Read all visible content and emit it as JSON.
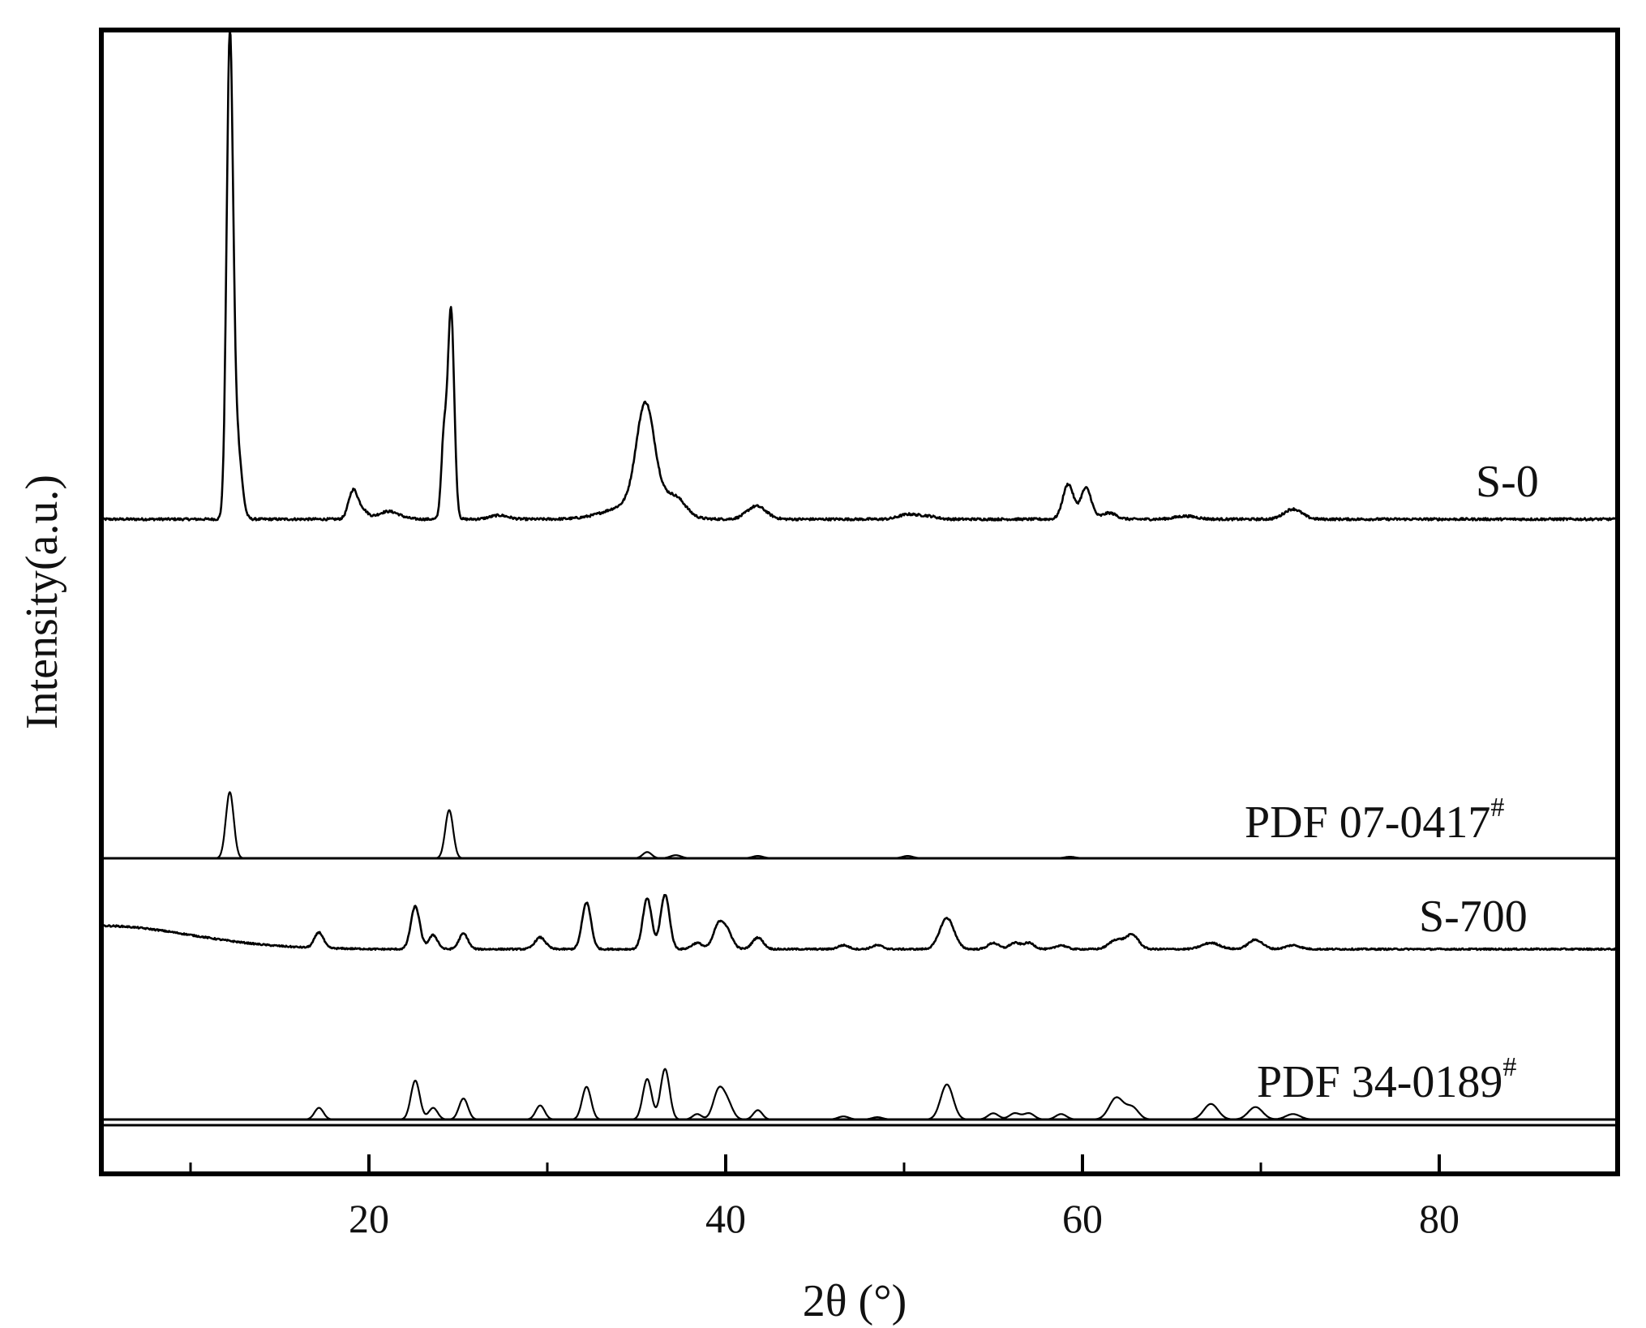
{
  "chart_data": {
    "type": "line",
    "title": "",
    "xlabel": "2θ (°)",
    "ylabel": "Intensity(a.u.)",
    "xlim": [
      5,
      90
    ],
    "xticks": [
      20,
      40,
      60,
      80
    ],
    "xticks_minor": [
      10,
      30,
      50,
      70
    ],
    "y_scale": "arbitrary units, stacked patterns with vertical offsets",
    "grid": false,
    "legend": "none (series labels printed beside each pattern)",
    "colors": {
      "line": "#000000",
      "axis": "#000000",
      "background": "#ffffff"
    },
    "series": [
      {
        "name": "S-0",
        "label_sup": "",
        "kind": "measured",
        "baseline": 0.58,
        "noise": 0.003,
        "peaks": [
          [
            12.2,
            0.6,
            0.18
          ],
          [
            12.6,
            0.1,
            0.25
          ],
          [
            19.1,
            0.035,
            0.25
          ],
          [
            19.6,
            0.012,
            0.3
          ],
          [
            21.1,
            0.01,
            0.6
          ],
          [
            24.2,
            0.1,
            0.15
          ],
          [
            24.6,
            0.27,
            0.18
          ],
          [
            27.3,
            0.005,
            0.5
          ],
          [
            35.5,
            0.13,
            0.5
          ],
          [
            35.0,
            0.02,
            1.5
          ],
          [
            36.8,
            0.015,
            0.6
          ],
          [
            37.4,
            0.012,
            0.5
          ],
          [
            41.6,
            0.012,
            0.5
          ],
          [
            42.0,
            0.006,
            0.5
          ],
          [
            50.2,
            0.006,
            0.5
          ],
          [
            51.3,
            0.004,
            0.5
          ],
          [
            59.2,
            0.045,
            0.3
          ],
          [
            60.2,
            0.04,
            0.3
          ],
          [
            61.5,
            0.008,
            0.4
          ],
          [
            65.8,
            0.004,
            0.6
          ],
          [
            71.8,
            0.013,
            0.5
          ]
        ]
      },
      {
        "name": "PDF 07-0417",
        "label_sup": "#",
        "kind": "reference",
        "baseline": 0.0,
        "noise": 0.0,
        "peaks": [
          [
            12.2,
            0.085,
            0.22
          ],
          [
            24.5,
            0.062,
            0.22
          ],
          [
            35.6,
            0.008,
            0.25
          ],
          [
            37.2,
            0.004,
            0.3
          ],
          [
            41.8,
            0.003,
            0.3
          ],
          [
            50.2,
            0.003,
            0.3
          ],
          [
            59.3,
            0.002,
            0.3
          ]
        ]
      },
      {
        "name": "S-700",
        "label_sup": "",
        "kind": "measured",
        "baseline": 0.0,
        "noise": 0.002,
        "hump": [
          5.0,
          0.03,
          5.0
        ],
        "peaks": [
          [
            17.2,
            0.02,
            0.25
          ],
          [
            22.6,
            0.055,
            0.25
          ],
          [
            23.6,
            0.018,
            0.25
          ],
          [
            25.3,
            0.02,
            0.25
          ],
          [
            29.6,
            0.015,
            0.3
          ],
          [
            32.2,
            0.06,
            0.25
          ],
          [
            35.6,
            0.065,
            0.25
          ],
          [
            36.6,
            0.07,
            0.25
          ],
          [
            38.4,
            0.008,
            0.3
          ],
          [
            39.6,
            0.03,
            0.3
          ],
          [
            40.1,
            0.02,
            0.3
          ],
          [
            41.8,
            0.015,
            0.3
          ],
          [
            46.6,
            0.005,
            0.3
          ],
          [
            48.5,
            0.005,
            0.3
          ],
          [
            52.4,
            0.04,
            0.4
          ],
          [
            55.0,
            0.008,
            0.3
          ],
          [
            56.2,
            0.008,
            0.3
          ],
          [
            57.0,
            0.008,
            0.3
          ],
          [
            58.8,
            0.005,
            0.3
          ],
          [
            61.9,
            0.012,
            0.4
          ],
          [
            62.8,
            0.018,
            0.35
          ],
          [
            67.2,
            0.008,
            0.5
          ],
          [
            69.7,
            0.012,
            0.4
          ],
          [
            71.8,
            0.005,
            0.4
          ]
        ]
      },
      {
        "name": "PDF 34-0189",
        "label_sup": "#",
        "kind": "reference",
        "baseline": 0.0,
        "noise": 0.0,
        "peaks": [
          [
            17.2,
            0.015,
            0.25
          ],
          [
            22.6,
            0.05,
            0.25
          ],
          [
            23.6,
            0.015,
            0.25
          ],
          [
            25.3,
            0.027,
            0.25
          ],
          [
            29.6,
            0.018,
            0.25
          ],
          [
            32.2,
            0.042,
            0.25
          ],
          [
            35.6,
            0.052,
            0.25
          ],
          [
            36.6,
            0.065,
            0.25
          ],
          [
            38.4,
            0.007,
            0.25
          ],
          [
            39.6,
            0.036,
            0.3
          ],
          [
            40.1,
            0.02,
            0.3
          ],
          [
            41.8,
            0.012,
            0.25
          ],
          [
            46.6,
            0.004,
            0.3
          ],
          [
            48.5,
            0.003,
            0.3
          ],
          [
            52.4,
            0.045,
            0.35
          ],
          [
            55.0,
            0.008,
            0.3
          ],
          [
            56.2,
            0.008,
            0.3
          ],
          [
            57.0,
            0.008,
            0.3
          ],
          [
            58.8,
            0.007,
            0.3
          ],
          [
            61.9,
            0.028,
            0.4
          ],
          [
            62.8,
            0.015,
            0.35
          ],
          [
            67.2,
            0.02,
            0.4
          ],
          [
            69.7,
            0.016,
            0.4
          ],
          [
            71.8,
            0.007,
            0.4
          ]
        ]
      }
    ]
  }
}
